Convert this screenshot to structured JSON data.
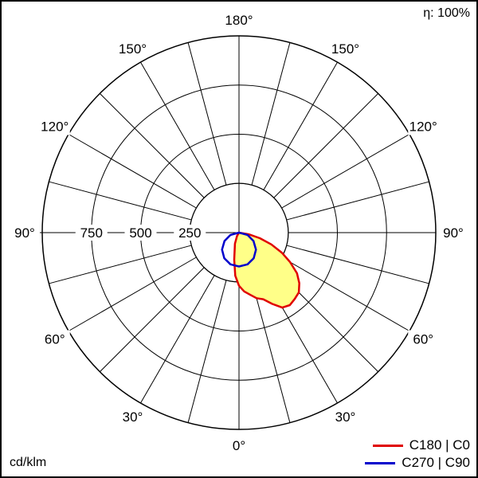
{
  "header": {
    "efficiency": "η: 100%"
  },
  "footer": {
    "unit": "cd/klm"
  },
  "chart_data": {
    "type": "polar",
    "title": "",
    "unit": "cd/klm",
    "efficiency": "η: 100%",
    "radial_ticks": [
      "250",
      "500",
      "750"
    ],
    "radial_tick_values": [
      250,
      500,
      750
    ],
    "r_max": 1000,
    "angle_step_deg": 15,
    "angle_labels": [
      {
        "text": "180°",
        "angle": 180,
        "side": "center"
      },
      {
        "text": "150°",
        "angle": 150,
        "side": "left"
      },
      {
        "text": "150°",
        "angle": 150,
        "side": "right"
      },
      {
        "text": "120°",
        "angle": 120,
        "side": "left"
      },
      {
        "text": "120°",
        "angle": 120,
        "side": "right"
      },
      {
        "text": "90°",
        "angle": 90,
        "side": "left"
      },
      {
        "text": "90°",
        "angle": 90,
        "side": "right"
      },
      {
        "text": "60°",
        "angle": 60,
        "side": "left"
      },
      {
        "text": "60°",
        "angle": 60,
        "side": "right"
      },
      {
        "text": "30°",
        "angle": 30,
        "side": "left"
      },
      {
        "text": "30°",
        "angle": 30,
        "side": "right"
      },
      {
        "text": "0°",
        "angle": 0,
        "side": "center"
      }
    ],
    "series": [
      {
        "name": "C180 | C0",
        "color": "#e00000",
        "fill": "#ffff88",
        "points": [
          {
            "angle": -30,
            "value": 20
          },
          {
            "angle": -20,
            "value": 60
          },
          {
            "angle": -10,
            "value": 140
          },
          {
            "angle": -5,
            "value": 220
          },
          {
            "angle": 0,
            "value": 270
          },
          {
            "angle": 5,
            "value": 300
          },
          {
            "angle": 10,
            "value": 320
          },
          {
            "angle": 15,
            "value": 345
          },
          {
            "angle": 20,
            "value": 360
          },
          {
            "angle": 25,
            "value": 400
          },
          {
            "angle": 30,
            "value": 440
          },
          {
            "angle": 35,
            "value": 450
          },
          {
            "angle": 40,
            "value": 440
          },
          {
            "angle": 45,
            "value": 430
          },
          {
            "angle": 50,
            "value": 400
          },
          {
            "angle": 55,
            "value": 360
          },
          {
            "angle": 60,
            "value": 300
          },
          {
            "angle": 65,
            "value": 240
          },
          {
            "angle": 70,
            "value": 175
          },
          {
            "angle": 75,
            "value": 110
          },
          {
            "angle": 80,
            "value": 50
          },
          {
            "angle": 90,
            "value": 0
          }
        ]
      },
      {
        "name": "C270 | C90",
        "color": "#0000cc",
        "points": [
          {
            "angle": -90,
            "value": 0
          },
          {
            "angle": -75,
            "value": 45
          },
          {
            "angle": -60,
            "value": 85
          },
          {
            "angle": -45,
            "value": 122
          },
          {
            "angle": -30,
            "value": 150
          },
          {
            "angle": -15,
            "value": 167
          },
          {
            "angle": 0,
            "value": 172
          },
          {
            "angle": 15,
            "value": 167
          },
          {
            "angle": 30,
            "value": 150
          },
          {
            "angle": 45,
            "value": 122
          },
          {
            "angle": 60,
            "value": 85
          },
          {
            "angle": 75,
            "value": 45
          },
          {
            "angle": 90,
            "value": 0
          }
        ]
      }
    ],
    "legend": [
      "C180 | C0",
      "C270 | C90"
    ],
    "legend_position": "bottom-right"
  }
}
